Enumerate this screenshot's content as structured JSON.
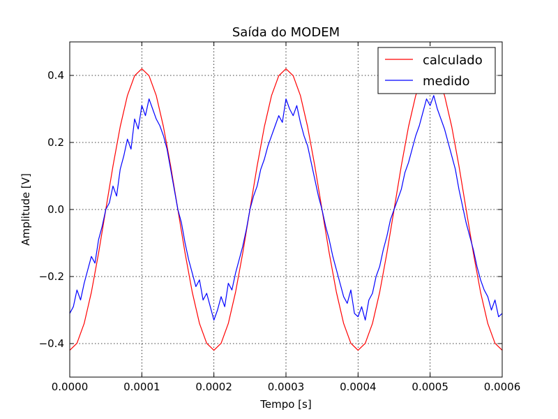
{
  "chart_data": {
    "type": "line",
    "title": "Saída do MODEM",
    "xlabel": "Tempo [s]",
    "ylabel": "Amplitude [V]",
    "xlim": [
      0.0,
      0.0006
    ],
    "ylim": [
      -0.5,
      0.5
    ],
    "xticks": [
      0.0,
      0.0001,
      0.0002,
      0.0003,
      0.0004,
      0.0005,
      0.0006
    ],
    "xtick_labels": [
      "0.0000",
      "0.0001",
      "0.0002",
      "0.0003",
      "0.0004",
      "0.0005",
      "0.0006"
    ],
    "yticks": [
      -0.4,
      -0.2,
      0.0,
      0.2,
      0.4
    ],
    "ytick_labels": [
      "−0.4",
      "−0.2",
      "0.0",
      "0.2",
      "0.4"
    ],
    "grid": true,
    "legend_position": "top-right",
    "series": [
      {
        "name": "calculado",
        "color": "#ff0000",
        "x": [
          0.0,
          1e-05,
          2e-05,
          3e-05,
          4e-05,
          5e-05,
          6e-05,
          7e-05,
          8e-05,
          9e-05,
          0.0001,
          0.00011,
          0.00012,
          0.00013,
          0.00014,
          0.00015,
          0.00016,
          0.00017,
          0.00018,
          0.00019,
          0.0002,
          0.00021,
          0.00022,
          0.00023,
          0.00024,
          0.00025,
          0.00026,
          0.00027,
          0.00028,
          0.00029,
          0.0003,
          0.00031,
          0.00032,
          0.00033,
          0.00034,
          0.00035,
          0.00036,
          0.00037,
          0.00038,
          0.00039,
          0.0004,
          0.00041,
          0.00042,
          0.00043,
          0.00044,
          0.00045,
          0.00046,
          0.00047,
          0.00048,
          0.00049,
          0.0005,
          0.00051,
          0.00052,
          0.00053,
          0.00054,
          0.00055,
          0.00056,
          0.00057,
          0.00058,
          0.00059,
          0.0006
        ],
        "values": [
          -0.42,
          -0.399,
          -0.34,
          -0.247,
          -0.13,
          0.0,
          0.13,
          0.247,
          0.34,
          0.399,
          0.42,
          0.399,
          0.34,
          0.247,
          0.13,
          0.0,
          -0.13,
          -0.247,
          -0.34,
          -0.399,
          -0.42,
          -0.399,
          -0.34,
          -0.247,
          -0.13,
          0.0,
          0.13,
          0.247,
          0.34,
          0.399,
          0.42,
          0.399,
          0.34,
          0.247,
          0.13,
          0.0,
          -0.13,
          -0.247,
          -0.34,
          -0.399,
          -0.42,
          -0.399,
          -0.34,
          -0.247,
          -0.13,
          0.0,
          0.13,
          0.247,
          0.34,
          0.399,
          0.42,
          0.399,
          0.34,
          0.247,
          0.13,
          0.0,
          -0.13,
          -0.247,
          -0.34,
          -0.399,
          -0.42
        ]
      },
      {
        "name": "medido",
        "color": "#0000ff",
        "x": [
          0.0,
          5e-06,
          1e-05,
          1.5e-05,
          2e-05,
          2.5e-05,
          3e-05,
          3.5e-05,
          4e-05,
          4.5e-05,
          5e-05,
          5.5e-05,
          6e-05,
          6.5e-05,
          7e-05,
          7.5e-05,
          8e-05,
          8.5e-05,
          9e-05,
          9.5e-05,
          0.0001,
          0.000105,
          0.00011,
          0.000115,
          0.00012,
          0.000125,
          0.00013,
          0.000135,
          0.00014,
          0.000145,
          0.00015,
          0.000155,
          0.00016,
          0.000165,
          0.00017,
          0.000175,
          0.00018,
          0.000185,
          0.00019,
          0.000195,
          0.0002,
          0.000205,
          0.00021,
          0.000215,
          0.00022,
          0.000225,
          0.00023,
          0.000235,
          0.00024,
          0.000245,
          0.00025,
          0.000255,
          0.00026,
          0.000265,
          0.00027,
          0.000275,
          0.00028,
          0.000285,
          0.00029,
          0.000295,
          0.0003,
          0.000305,
          0.00031,
          0.000315,
          0.00032,
          0.000325,
          0.00033,
          0.000335,
          0.00034,
          0.000345,
          0.00035,
          0.000355,
          0.00036,
          0.000365,
          0.00037,
          0.000375,
          0.00038,
          0.000385,
          0.00039,
          0.000395,
          0.0004,
          0.000405,
          0.00041,
          0.000415,
          0.00042,
          0.000425,
          0.00043,
          0.000435,
          0.00044,
          0.000445,
          0.00045,
          0.000455,
          0.00046,
          0.000465,
          0.00047,
          0.000475,
          0.00048,
          0.000485,
          0.00049,
          0.000495,
          0.0005,
          0.000505,
          0.00051,
          0.000515,
          0.00052,
          0.000525,
          0.00053,
          0.000535,
          0.00054,
          0.000545,
          0.00055,
          0.000555,
          0.00056,
          0.000565,
          0.00057,
          0.000575,
          0.00058,
          0.000585,
          0.00059,
          0.000595,
          0.0006
        ],
        "values": [
          -0.31,
          -0.29,
          -0.24,
          -0.27,
          -0.22,
          -0.18,
          -0.14,
          -0.16,
          -0.09,
          -0.05,
          0.0,
          0.02,
          0.07,
          0.04,
          0.12,
          0.16,
          0.21,
          0.18,
          0.27,
          0.24,
          0.31,
          0.28,
          0.33,
          0.3,
          0.27,
          0.25,
          0.22,
          0.18,
          0.12,
          0.06,
          0.0,
          -0.04,
          -0.1,
          -0.15,
          -0.19,
          -0.23,
          -0.21,
          -0.27,
          -0.25,
          -0.29,
          -0.33,
          -0.3,
          -0.26,
          -0.29,
          -0.22,
          -0.24,
          -0.19,
          -0.15,
          -0.11,
          -0.06,
          0.0,
          0.04,
          0.07,
          0.12,
          0.15,
          0.19,
          0.22,
          0.25,
          0.28,
          0.26,
          0.33,
          0.3,
          0.28,
          0.31,
          0.26,
          0.22,
          0.19,
          0.14,
          0.09,
          0.04,
          0.0,
          -0.05,
          -0.09,
          -0.14,
          -0.18,
          -0.22,
          -0.26,
          -0.28,
          -0.24,
          -0.31,
          -0.32,
          -0.29,
          -0.33,
          -0.27,
          -0.25,
          -0.2,
          -0.17,
          -0.12,
          -0.08,
          -0.03,
          0.0,
          0.03,
          0.06,
          0.11,
          0.14,
          0.18,
          0.22,
          0.25,
          0.29,
          0.33,
          0.31,
          0.34,
          0.3,
          0.27,
          0.24,
          0.2,
          0.16,
          0.12,
          0.06,
          0.01,
          -0.04,
          -0.08,
          -0.12,
          -0.17,
          -0.21,
          -0.24,
          -0.26,
          -0.3,
          -0.27,
          -0.32,
          -0.31
        ]
      }
    ]
  }
}
